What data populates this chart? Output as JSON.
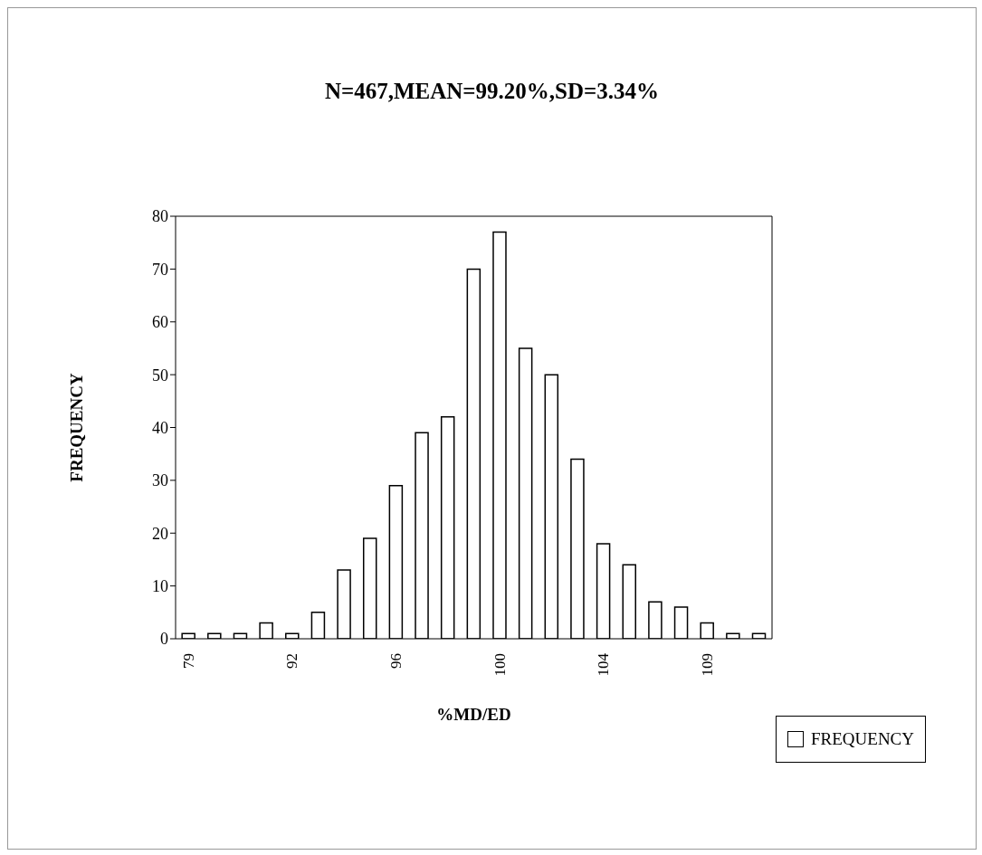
{
  "chart_data": {
    "type": "bar",
    "title": "N=467,MEAN=99.20%,SD=3.34%",
    "xlabel": "%MD/ED",
    "ylabel": "FREQUENCY",
    "categories": [
      "79",
      null,
      null,
      null,
      "92",
      null,
      null,
      null,
      "96",
      null,
      null,
      null,
      "100",
      null,
      null,
      null,
      "104",
      null,
      null,
      null,
      "109",
      null,
      null
    ],
    "series": [
      {
        "name": "FREQUENCY",
        "color": "#ffffff",
        "values": [
          1,
          1,
          1,
          3,
          1,
          5,
          13,
          19,
          29,
          39,
          42,
          70,
          77,
          55,
          50,
          34,
          18,
          14,
          7,
          6,
          3,
          1,
          1
        ]
      }
    ],
    "ylim": [
      0,
      80
    ],
    "yticks": [
      0,
      10,
      20,
      30,
      40,
      50,
      60,
      70,
      80
    ],
    "grid": false,
    "legend": "right"
  }
}
